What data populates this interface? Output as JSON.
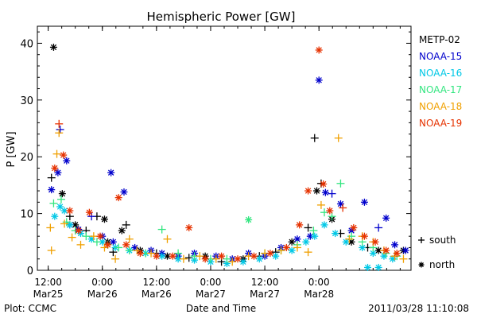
{
  "chart_data": {
    "type": "scatter",
    "title": "Hemispheric Power [GW]",
    "ylabel": "P [GW]",
    "xlabel": "Date and Time",
    "ylim": [
      0,
      43
    ],
    "xlim": [
      -0.1,
      3.35
    ],
    "y_ticks": [
      0,
      10,
      20,
      30,
      40
    ],
    "x_ticks": [
      {
        "x": 0.0,
        "time": "12:00",
        "date": "Mar25"
      },
      {
        "x": 0.5,
        "time": "0:00",
        "date": "Mar26"
      },
      {
        "x": 1.0,
        "time": "12:00",
        "date": "Mar26"
      },
      {
        "x": 1.5,
        "time": "0:00",
        "date": "Mar27"
      },
      {
        "x": 2.0,
        "time": "12:00",
        "date": "Mar27"
      },
      {
        "x": 2.5,
        "time": "0:00",
        "date": "Mar28"
      }
    ],
    "x_unit_note": "x values in days since 2011-03-25 12:00",
    "credit": "Plot: CCMC",
    "timestamp": "2011/03/28 11:10:08",
    "legend": {
      "series": [
        {
          "name": "METP-02",
          "color": "#000000"
        },
        {
          "name": "NOAA-15",
          "color": "#0000cc"
        },
        {
          "name": "NOAA-16",
          "color": "#00c8e6"
        },
        {
          "name": "NOAA-17",
          "color": "#33e680"
        },
        {
          "name": "NOAA-18",
          "color": "#f0a000"
        },
        {
          "name": "NOAA-19",
          "color": "#e63200"
        }
      ],
      "markers": [
        {
          "symbol": "+",
          "label": "south"
        },
        {
          "symbol": "*",
          "label": "north"
        }
      ]
    },
    "series": [
      {
        "name": "METP-02",
        "color": "#000000",
        "points": [
          [
            0.05,
            39.3,
            "n"
          ],
          [
            0.03,
            16.3,
            "s"
          ],
          [
            0.13,
            13.5,
            "n"
          ],
          [
            0.2,
            9.5,
            "s"
          ],
          [
            0.25,
            8,
            "n"
          ],
          [
            0.35,
            7,
            "s"
          ],
          [
            0.45,
            9.5,
            "s"
          ],
          [
            0.52,
            9,
            "n"
          ],
          [
            0.55,
            5,
            "n"
          ],
          [
            0.6,
            3.2,
            "s"
          ],
          [
            0.68,
            7,
            "n"
          ],
          [
            0.72,
            8,
            "s"
          ],
          [
            0.85,
            3.5,
            "n"
          ],
          [
            1.0,
            3,
            "s"
          ],
          [
            1.1,
            2.5,
            "n"
          ],
          [
            1.3,
            2.2,
            "s"
          ],
          [
            1.45,
            2.5,
            "n"
          ],
          [
            1.6,
            1.5,
            "s"
          ],
          [
            1.8,
            2,
            "n"
          ],
          [
            1.95,
            2.5,
            "s"
          ],
          [
            2.1,
            3.2,
            "s"
          ],
          [
            2.25,
            5,
            "n"
          ],
          [
            2.4,
            7.5,
            "s"
          ],
          [
            2.48,
            14,
            "n"
          ],
          [
            2.46,
            23.3,
            "s"
          ],
          [
            2.52,
            15.3,
            "s"
          ],
          [
            2.62,
            9,
            "n"
          ],
          [
            2.7,
            6.5,
            "s"
          ],
          [
            2.8,
            5,
            "n"
          ],
          [
            2.95,
            4,
            "s"
          ],
          [
            3.05,
            3.5,
            "n"
          ],
          [
            3.2,
            2.5,
            "s"
          ],
          [
            3.28,
            3.5,
            "n"
          ]
        ]
      },
      {
        "name": "NOAA-15",
        "color": "#0000cc",
        "points": [
          [
            0.09,
            17.2,
            "n"
          ],
          [
            0.11,
            24.8,
            "s"
          ],
          [
            0.03,
            14.2,
            "n"
          ],
          [
            0.17,
            19.3,
            "n"
          ],
          [
            0.2,
            8,
            "n"
          ],
          [
            0.28,
            7.2,
            "n"
          ],
          [
            0.4,
            9.5,
            "s"
          ],
          [
            0.5,
            6,
            "n"
          ],
          [
            0.58,
            17.2,
            "n"
          ],
          [
            0.6,
            5,
            "n"
          ],
          [
            0.7,
            13.8,
            "n"
          ],
          [
            0.8,
            4,
            "n"
          ],
          [
            0.95,
            3.5,
            "n"
          ],
          [
            1.05,
            3,
            "n"
          ],
          [
            1.2,
            2.5,
            "n"
          ],
          [
            1.35,
            3,
            "n"
          ],
          [
            1.55,
            2.5,
            "n"
          ],
          [
            1.7,
            2,
            "n"
          ],
          [
            1.85,
            3,
            "n"
          ],
          [
            2.0,
            2.5,
            "n"
          ],
          [
            2.15,
            4,
            "n"
          ],
          [
            2.3,
            5.5,
            "n"
          ],
          [
            2.42,
            6,
            "n"
          ],
          [
            2.5,
            33.5,
            "n"
          ],
          [
            2.56,
            13.7,
            "n"
          ],
          [
            2.62,
            13.5,
            "s"
          ],
          [
            2.7,
            11.7,
            "n"
          ],
          [
            2.8,
            7,
            "n"
          ],
          [
            2.92,
            12,
            "n"
          ],
          [
            3.05,
            7.5,
            "s"
          ],
          [
            3.12,
            9.2,
            "n"
          ],
          [
            3.2,
            4.5,
            "n"
          ],
          [
            3.3,
            3.5,
            "n"
          ]
        ]
      },
      {
        "name": "NOAA-16",
        "color": "#00c8e6",
        "points": [
          [
            0.06,
            9.5,
            "n"
          ],
          [
            0.11,
            11.2,
            "n"
          ],
          [
            0.15,
            10.5,
            "n"
          ],
          [
            0.2,
            8,
            "n"
          ],
          [
            0.3,
            6.5,
            "n"
          ],
          [
            0.4,
            5.5,
            "n"
          ],
          [
            0.5,
            5,
            "n"
          ],
          [
            0.62,
            4,
            "n"
          ],
          [
            0.75,
            3.5,
            "n"
          ],
          [
            0.9,
            3,
            "n"
          ],
          [
            1.05,
            2.5,
            "n"
          ],
          [
            1.2,
            2,
            "n"
          ],
          [
            1.35,
            1.8,
            "n"
          ],
          [
            1.5,
            1.5,
            "n"
          ],
          [
            1.65,
            1.2,
            "n"
          ],
          [
            1.8,
            1.5,
            "n"
          ],
          [
            1.95,
            2,
            "n"
          ],
          [
            2.1,
            2.5,
            "n"
          ],
          [
            2.25,
            3.5,
            "n"
          ],
          [
            2.38,
            5,
            "n"
          ],
          [
            2.46,
            6,
            "n"
          ],
          [
            2.55,
            8,
            "n"
          ],
          [
            2.65,
            6.5,
            "n"
          ],
          [
            2.75,
            5,
            "n"
          ],
          [
            2.9,
            4,
            "n"
          ],
          [
            3.0,
            3,
            "n"
          ],
          [
            3.1,
            2.5,
            "n"
          ],
          [
            3.18,
            2,
            "n"
          ],
          [
            2.95,
            0.5,
            "n"
          ],
          [
            3.05,
            0.5,
            "n"
          ]
        ]
      },
      {
        "name": "NOAA-17",
        "color": "#33e680",
        "points": [
          [
            0.05,
            11.8,
            "s"
          ],
          [
            0.12,
            12.5,
            "s"
          ],
          [
            0.17,
            8.5,
            "s"
          ],
          [
            0.25,
            7,
            "s"
          ],
          [
            0.35,
            6,
            "s"
          ],
          [
            0.45,
            5,
            "s"
          ],
          [
            0.55,
            4.5,
            "s"
          ],
          [
            0.65,
            4,
            "s"
          ],
          [
            0.75,
            3.5,
            "s"
          ],
          [
            0.9,
            3,
            "s"
          ],
          [
            1.05,
            7.2,
            "s"
          ],
          [
            1.2,
            3,
            "s"
          ],
          [
            1.35,
            2.5,
            "s"
          ],
          [
            1.5,
            2,
            "s"
          ],
          [
            1.65,
            2,
            "s"
          ],
          [
            1.85,
            8.9,
            "n"
          ],
          [
            2.0,
            3,
            "s"
          ],
          [
            2.15,
            3.5,
            "s"
          ],
          [
            2.3,
            4.5,
            "s"
          ],
          [
            2.45,
            7,
            "s"
          ],
          [
            2.55,
            10.2,
            "s"
          ],
          [
            2.62,
            9.5,
            "s"
          ],
          [
            2.7,
            15.3,
            "s"
          ],
          [
            2.8,
            6,
            "s"
          ],
          [
            2.9,
            5,
            "s"
          ],
          [
            3.0,
            4,
            "s"
          ],
          [
            3.12,
            3,
            "s"
          ],
          [
            3.22,
            2.5,
            "s"
          ]
        ]
      },
      {
        "name": "NOAA-18",
        "color": "#f0a000",
        "points": [
          [
            0.08,
            20.5,
            "s"
          ],
          [
            0.1,
            24.2,
            "s"
          ],
          [
            0.02,
            7.5,
            "s"
          ],
          [
            0.03,
            3.5,
            "s"
          ],
          [
            0.15,
            8.2,
            "s"
          ],
          [
            0.22,
            5.8,
            "s"
          ],
          [
            0.3,
            4.5,
            "s"
          ],
          [
            0.42,
            6,
            "s"
          ],
          [
            0.52,
            4,
            "s"
          ],
          [
            0.62,
            2,
            "s"
          ],
          [
            0.75,
            5.5,
            "s"
          ],
          [
            0.82,
            3.5,
            "s"
          ],
          [
            0.95,
            3,
            "s"
          ],
          [
            1.1,
            5.5,
            "s"
          ],
          [
            1.25,
            2,
            "s"
          ],
          [
            1.4,
            2.5,
            "s"
          ],
          [
            1.55,
            2,
            "s"
          ],
          [
            1.7,
            1.5,
            "s"
          ],
          [
            1.85,
            2.5,
            "s"
          ],
          [
            2.0,
            3,
            "s"
          ],
          [
            2.15,
            3.5,
            "s"
          ],
          [
            2.3,
            4,
            "s"
          ],
          [
            2.4,
            3.2,
            "s"
          ],
          [
            2.52,
            11.5,
            "s"
          ],
          [
            2.68,
            23.3,
            "s"
          ],
          [
            2.78,
            5.5,
            "s"
          ],
          [
            2.9,
            6,
            "s"
          ],
          [
            3.0,
            5,
            "s"
          ],
          [
            3.1,
            3.5,
            "s"
          ],
          [
            3.2,
            2.5,
            "s"
          ],
          [
            3.28,
            2,
            "s"
          ]
        ]
      },
      {
        "name": "NOAA-19",
        "color": "#e63200",
        "points": [
          [
            0.1,
            25.8,
            "s"
          ],
          [
            0.06,
            18,
            "n"
          ],
          [
            0.14,
            20.3,
            "n"
          ],
          [
            0.2,
            10.5,
            "n"
          ],
          [
            0.28,
            7,
            "n"
          ],
          [
            0.38,
            10.2,
            "n"
          ],
          [
            0.48,
            6,
            "n"
          ],
          [
            0.55,
            4.5,
            "n"
          ],
          [
            0.65,
            12.8,
            "n"
          ],
          [
            0.72,
            4.5,
            "n"
          ],
          [
            0.85,
            3,
            "n"
          ],
          [
            1.0,
            2.5,
            "n"
          ],
          [
            1.15,
            2.5,
            "n"
          ],
          [
            1.3,
            7.5,
            "n"
          ],
          [
            1.45,
            2,
            "n"
          ],
          [
            1.6,
            2.5,
            "n"
          ],
          [
            1.75,
            2,
            "n"
          ],
          [
            1.9,
            2.5,
            "n"
          ],
          [
            2.05,
            3,
            "n"
          ],
          [
            2.2,
            4,
            "n"
          ],
          [
            2.32,
            8,
            "n"
          ],
          [
            2.4,
            14,
            "n"
          ],
          [
            2.5,
            38.8,
            "n"
          ],
          [
            2.54,
            15.2,
            "n"
          ],
          [
            2.6,
            10.5,
            "n"
          ],
          [
            2.72,
            11,
            "s"
          ],
          [
            2.82,
            7.5,
            "n"
          ],
          [
            2.92,
            6,
            "n"
          ],
          [
            3.02,
            5,
            "n"
          ],
          [
            3.12,
            3.5,
            "n"
          ],
          [
            3.22,
            3,
            "n"
          ]
        ]
      }
    ]
  }
}
